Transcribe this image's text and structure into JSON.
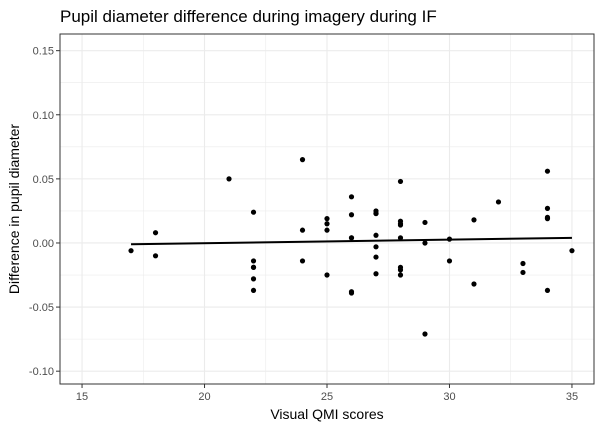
{
  "chart_data": {
    "type": "scatter",
    "title": "Pupil diameter difference during imagery during IF",
    "xlabel": "Visual QMI scores",
    "ylabel": "Difference in pupil diameter",
    "xlim": [
      14.1,
      35.9
    ],
    "ylim": [
      -0.11,
      0.163
    ],
    "x_ticks": [
      15,
      20,
      25,
      30,
      35
    ],
    "x_tick_labels": [
      "15",
      "20",
      "25",
      "30",
      "35"
    ],
    "y_ticks": [
      -0.1,
      -0.05,
      0.0,
      0.05,
      0.1,
      0.15
    ],
    "y_tick_labels": [
      "-0.10",
      "-0.05",
      "0.00",
      "0.05",
      "0.10",
      "0.15"
    ],
    "grid": true,
    "legend": "none",
    "colors": {
      "points": "#000000",
      "line": "#000000",
      "grid": "#ebebeb",
      "border": "#333333"
    },
    "series": [
      {
        "type": "scatter",
        "x": [
          17,
          18,
          18,
          21,
          22,
          22,
          22,
          22,
          22,
          22,
          24,
          24,
          24,
          25,
          25,
          25,
          25,
          26,
          26,
          26,
          26,
          26,
          26,
          27,
          27,
          27,
          27,
          27,
          27,
          27,
          28,
          28,
          28,
          28,
          28,
          28,
          28,
          28,
          29,
          29,
          29,
          30,
          30,
          31,
          31,
          32,
          33,
          33,
          34,
          34,
          34,
          34,
          34,
          35
        ],
        "y": [
          -0.006,
          0.008,
          -0.01,
          0.05,
          0.024,
          -0.014,
          -0.019,
          -0.028,
          -0.037,
          -0.019,
          0.065,
          0.01,
          -0.014,
          0.019,
          0.015,
          0.01,
          -0.025,
          0.036,
          0.022,
          0.004,
          -0.038,
          -0.039,
          0.004,
          0.025,
          0.023,
          0.006,
          -0.003,
          -0.011,
          -0.024,
          0.023,
          0.048,
          0.017,
          0.015,
          0.014,
          0.004,
          -0.019,
          -0.021,
          -0.025,
          0.016,
          0.0,
          -0.071,
          0.003,
          -0.014,
          0.018,
          -0.032,
          0.032,
          -0.016,
          -0.023,
          0.056,
          0.027,
          0.02,
          0.019,
          -0.037,
          -0.006
        ]
      },
      {
        "type": "line",
        "x": [
          17,
          35
        ],
        "y": [
          -0.001,
          0.004
        ]
      }
    ]
  }
}
